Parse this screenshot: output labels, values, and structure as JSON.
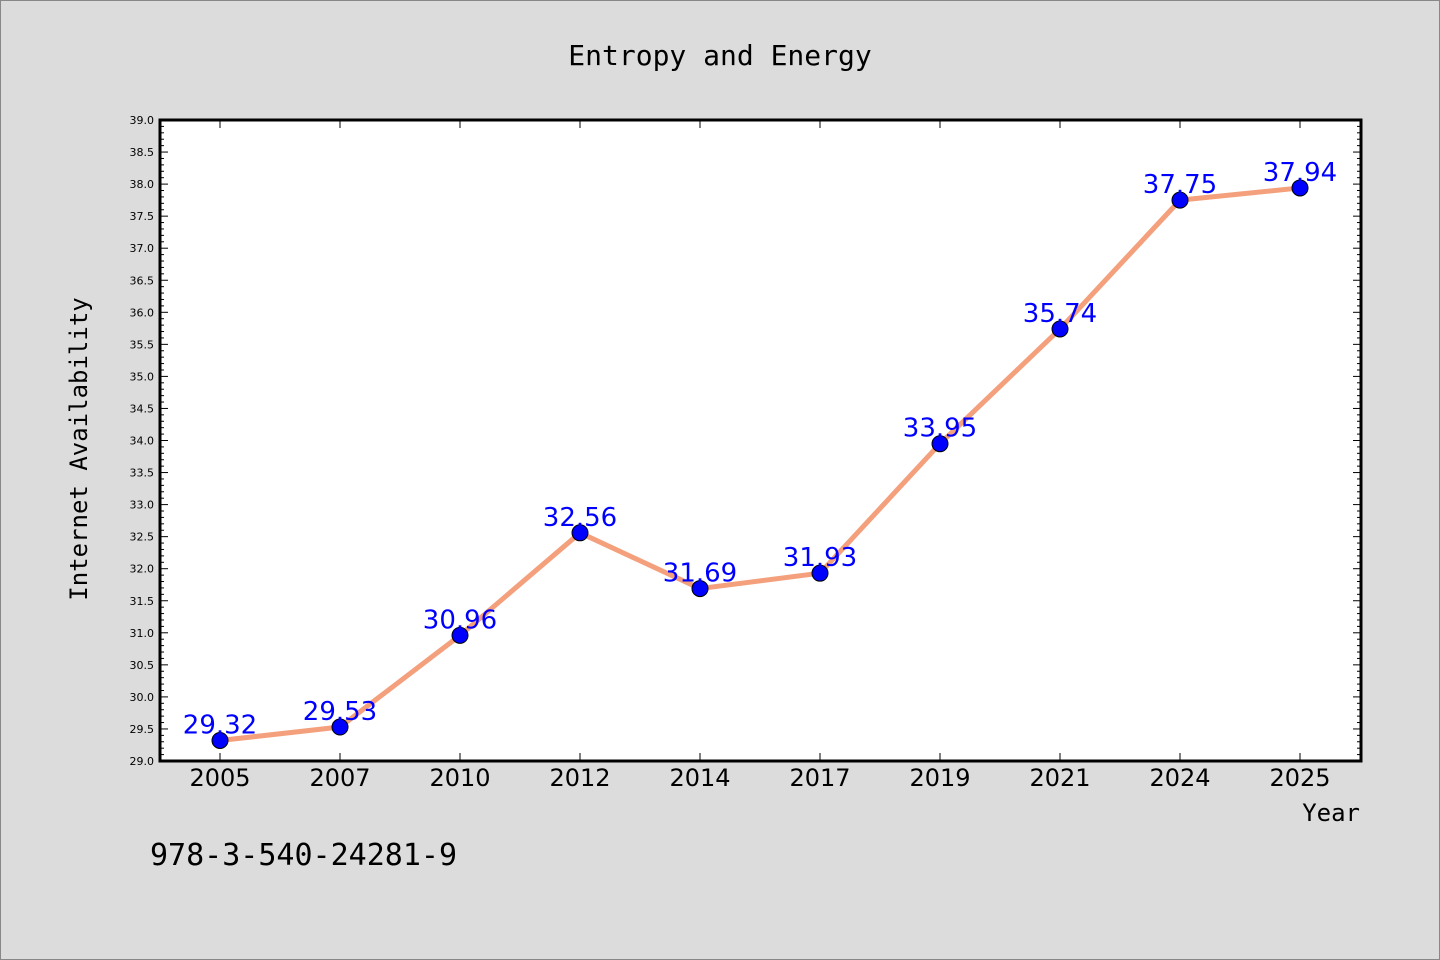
{
  "chart_data": {
    "type": "line",
    "title": "Entropy and Energy",
    "xlabel": "Year",
    "ylabel": "Internet Availability",
    "categories": [
      "2005",
      "2007",
      "2010",
      "2012",
      "2014",
      "2017",
      "2019",
      "2021",
      "2024",
      "2025"
    ],
    "series": [
      {
        "values": [
          29.32,
          29.53,
          30.96,
          32.56,
          31.69,
          31.93,
          33.95,
          35.74,
          37.75,
          37.94
        ],
        "labels": [
          "29.32",
          "29.53",
          "30.96",
          "32.56",
          "31.69",
          "31.93",
          "33.95",
          "35.74",
          "37.75",
          "37.94"
        ],
        "line_color": "#f4a07c",
        "marker_color": "#0000ff",
        "label_color": "#0000ff"
      }
    ],
    "ylim": [
      29.0,
      39.0
    ],
    "yticks": [
      "29.0",
      "29.5",
      "30.0",
      "30.5",
      "31.0",
      "31.5",
      "32.0",
      "32.5",
      "33.0",
      "33.5",
      "34.0",
      "34.5",
      "35.0",
      "35.5",
      "36.0",
      "36.5",
      "37.0",
      "37.5",
      "38.0",
      "38.5",
      "39.0"
    ],
    "grid": false,
    "legend": "none"
  },
  "footnote": "978-3-540-24281-9",
  "colors": {
    "background": "#dcdcdc",
    "plot_background": "#ffffff",
    "axes_border": "#000000"
  }
}
